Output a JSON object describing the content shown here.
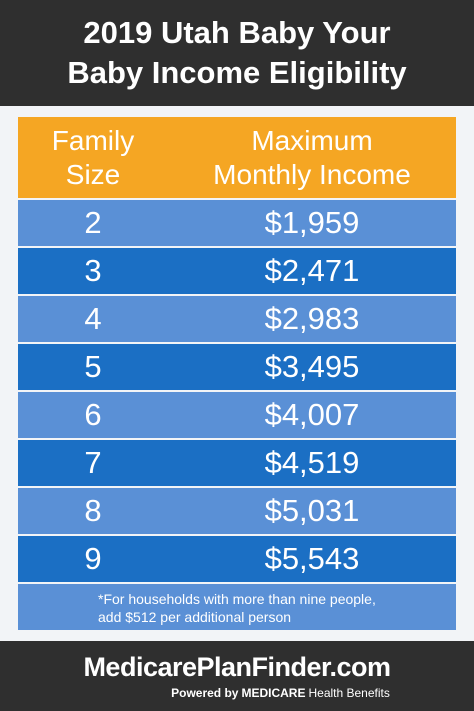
{
  "header": {
    "title_lines": [
      "2019 Utah Baby Your",
      "Baby Income Eligibility"
    ]
  },
  "table": {
    "columns": [
      [
        "Family",
        "Size"
      ],
      [
        "Maximum",
        "Monthly Income"
      ]
    ],
    "rows": [
      [
        "2",
        "$1,959"
      ],
      [
        "3",
        "$2,471"
      ],
      [
        "4",
        "$2,983"
      ],
      [
        "5",
        "$3,495"
      ],
      [
        "6",
        "$4,007"
      ],
      [
        "7",
        "$4,519"
      ],
      [
        "8",
        "$5,031"
      ],
      [
        "9",
        "$5,543"
      ]
    ],
    "footnote": "*For households with more than nine people, add $512 per additional person"
  },
  "footer": {
    "brand": "MedicarePlanFinder.com",
    "tagline": [
      "Powered by",
      "MEDICARE",
      "Health Benefits"
    ]
  }
}
